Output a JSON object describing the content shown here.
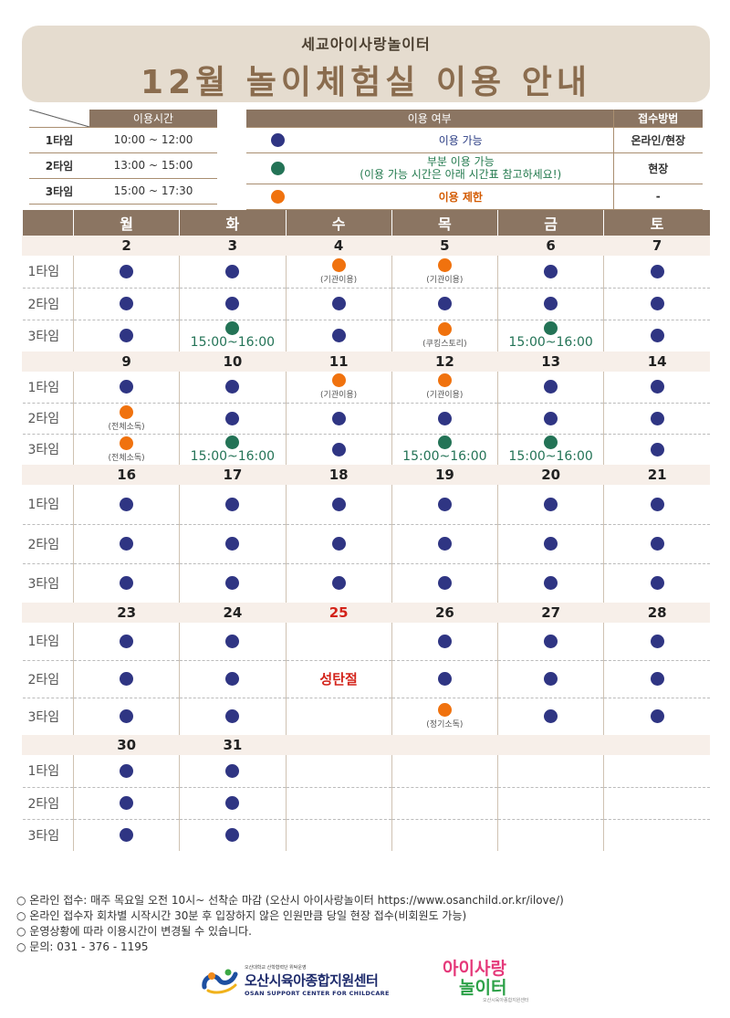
{
  "header": {
    "subtitle": "세교아이사랑놀이터",
    "title": "12월 놀이체험실 이용 안내"
  },
  "time_table": {
    "header": "이용시간",
    "rows": [
      {
        "label": "1타임",
        "time": "10:00 ~ 12:00"
      },
      {
        "label": "2타임",
        "time": "13:00 ~ 15:00"
      },
      {
        "label": "3타임",
        "time": "15:00 ~ 17:30"
      }
    ]
  },
  "legend": {
    "header_usage": "이용 여부",
    "header_method": "접수방법",
    "rows": [
      {
        "color": "blue",
        "text": "이용 가능",
        "text2": "",
        "method": "온라인/현장"
      },
      {
        "color": "green",
        "text": "부분 이용 가능",
        "text2": "(이용 가능 시간은 아래 시간표 참고하세요!)",
        "method": "현장"
      },
      {
        "color": "orange",
        "text": "이용 제한",
        "text2": "",
        "method": "-"
      }
    ]
  },
  "colors": {
    "blue": "#2f3583",
    "green": "#237356",
    "orange": "#f0720e",
    "header_bg": "#8b7562",
    "title_bg": "#e5dccf"
  },
  "calendar": {
    "weekdays": [
      "월",
      "화",
      "수",
      "목",
      "금",
      "토"
    ],
    "slot_labels": [
      "1타임",
      "2타임",
      "3타임"
    ],
    "weeks": [
      {
        "dates": [
          "2",
          "3",
          "4",
          "5",
          "6",
          "7"
        ],
        "slots": [
          [
            {
              "s": "b"
            },
            {
              "s": "b"
            },
            {
              "s": "o",
              "note": "(기관이용)"
            },
            {
              "s": "o",
              "note": "(기관이용)"
            },
            {
              "s": "b"
            },
            {
              "s": "b"
            }
          ],
          [
            {
              "s": "b"
            },
            {
              "s": "b"
            },
            {
              "s": "b"
            },
            {
              "s": "b"
            },
            {
              "s": "b"
            },
            {
              "s": "b"
            }
          ],
          [
            {
              "s": "b"
            },
            {
              "s": "g",
              "time": "15:00~16:00"
            },
            {
              "s": "b"
            },
            {
              "s": "o",
              "note": "(쿠킹스토리)"
            },
            {
              "s": "g",
              "time": "15:00~16:00"
            },
            {
              "s": "b"
            }
          ]
        ]
      },
      {
        "dates": [
          "9",
          "10",
          "11",
          "12",
          "13",
          "14"
        ],
        "slots": [
          [
            {
              "s": "b"
            },
            {
              "s": "b"
            },
            {
              "s": "o",
              "note": "(기관이용)"
            },
            {
              "s": "o",
              "note": "(기관이용)"
            },
            {
              "s": "b"
            },
            {
              "s": "b"
            }
          ],
          [
            {
              "s": "o",
              "note": "(전체소독)"
            },
            {
              "s": "b"
            },
            {
              "s": "b"
            },
            {
              "s": "b"
            },
            {
              "s": "b"
            },
            {
              "s": "b"
            }
          ],
          [
            {
              "s": "o",
              "note": "(전체소독)"
            },
            {
              "s": "g",
              "time": "15:00~16:00"
            },
            {
              "s": "b"
            },
            {
              "s": "g",
              "time": "15:00~16:00"
            },
            {
              "s": "g",
              "time": "15:00~16:00"
            },
            {
              "s": "b"
            }
          ]
        ]
      },
      {
        "dates": [
          "16",
          "17",
          "18",
          "19",
          "20",
          "21"
        ],
        "slots": [
          [
            {
              "s": "b"
            },
            {
              "s": "b"
            },
            {
              "s": "b"
            },
            {
              "s": "b"
            },
            {
              "s": "b"
            },
            {
              "s": "b"
            }
          ],
          [
            {
              "s": "b"
            },
            {
              "s": "b"
            },
            {
              "s": "b"
            },
            {
              "s": "b"
            },
            {
              "s": "b"
            },
            {
              "s": "b"
            }
          ],
          [
            {
              "s": "b"
            },
            {
              "s": "b"
            },
            {
              "s": "b"
            },
            {
              "s": "b"
            },
            {
              "s": "b"
            },
            {
              "s": "b"
            }
          ]
        ]
      },
      {
        "dates": [
          "23",
          "24",
          "25",
          "26",
          "27",
          "28"
        ],
        "holiday_index": 2,
        "slots": [
          [
            {
              "s": "b"
            },
            {
              "s": "b"
            },
            {
              "s": ""
            },
            {
              "s": "b"
            },
            {
              "s": "b"
            },
            {
              "s": "b"
            }
          ],
          [
            {
              "s": "b"
            },
            {
              "s": "b"
            },
            {
              "s": "h",
              "label": "성탄절"
            },
            {
              "s": "b"
            },
            {
              "s": "b"
            },
            {
              "s": "b"
            }
          ],
          [
            {
              "s": "b"
            },
            {
              "s": "b"
            },
            {
              "s": ""
            },
            {
              "s": "o",
              "note": "(정기소독)"
            },
            {
              "s": "b"
            },
            {
              "s": "b"
            }
          ]
        ]
      },
      {
        "dates": [
          "30",
          "31",
          "",
          "",
          "",
          ""
        ],
        "slots": [
          [
            {
              "s": "b"
            },
            {
              "s": "b"
            },
            {
              "s": ""
            },
            {
              "s": ""
            },
            {
              "s": ""
            },
            {
              "s": ""
            }
          ],
          [
            {
              "s": "b"
            },
            {
              "s": "b"
            },
            {
              "s": ""
            },
            {
              "s": ""
            },
            {
              "s": ""
            },
            {
              "s": ""
            }
          ],
          [
            {
              "s": "b"
            },
            {
              "s": "b"
            },
            {
              "s": ""
            },
            {
              "s": ""
            },
            {
              "s": ""
            },
            {
              "s": ""
            }
          ]
        ]
      }
    ]
  },
  "footer": {
    "notes": [
      "온라인 접수: 매주 목요일 오전 10시~ 선착순 마감 (오산시 아이사랑놀이터 https://www.osanchild.or.kr/ilove/)",
      "온라인 접수자 회차별 시작시간 30분 후 입장하지 않은 인원만큼 당일 현장 접수(비회원도 가능)",
      "운영상황에 따라 이용시간이 변경될 수 있습니다.",
      "문의: 031 - 376 - 1195"
    ],
    "logo_center": {
      "small": "오산대학교 산학협력단 위탁운영",
      "name": "오산시육아종합지원센터",
      "english": "OSAN SUPPORT CENTER FOR CHILDCARE"
    },
    "logo_play": {
      "top": "아이사랑",
      "bottom": "놀이터",
      "small": "오산시육아종합지원센터"
    }
  }
}
